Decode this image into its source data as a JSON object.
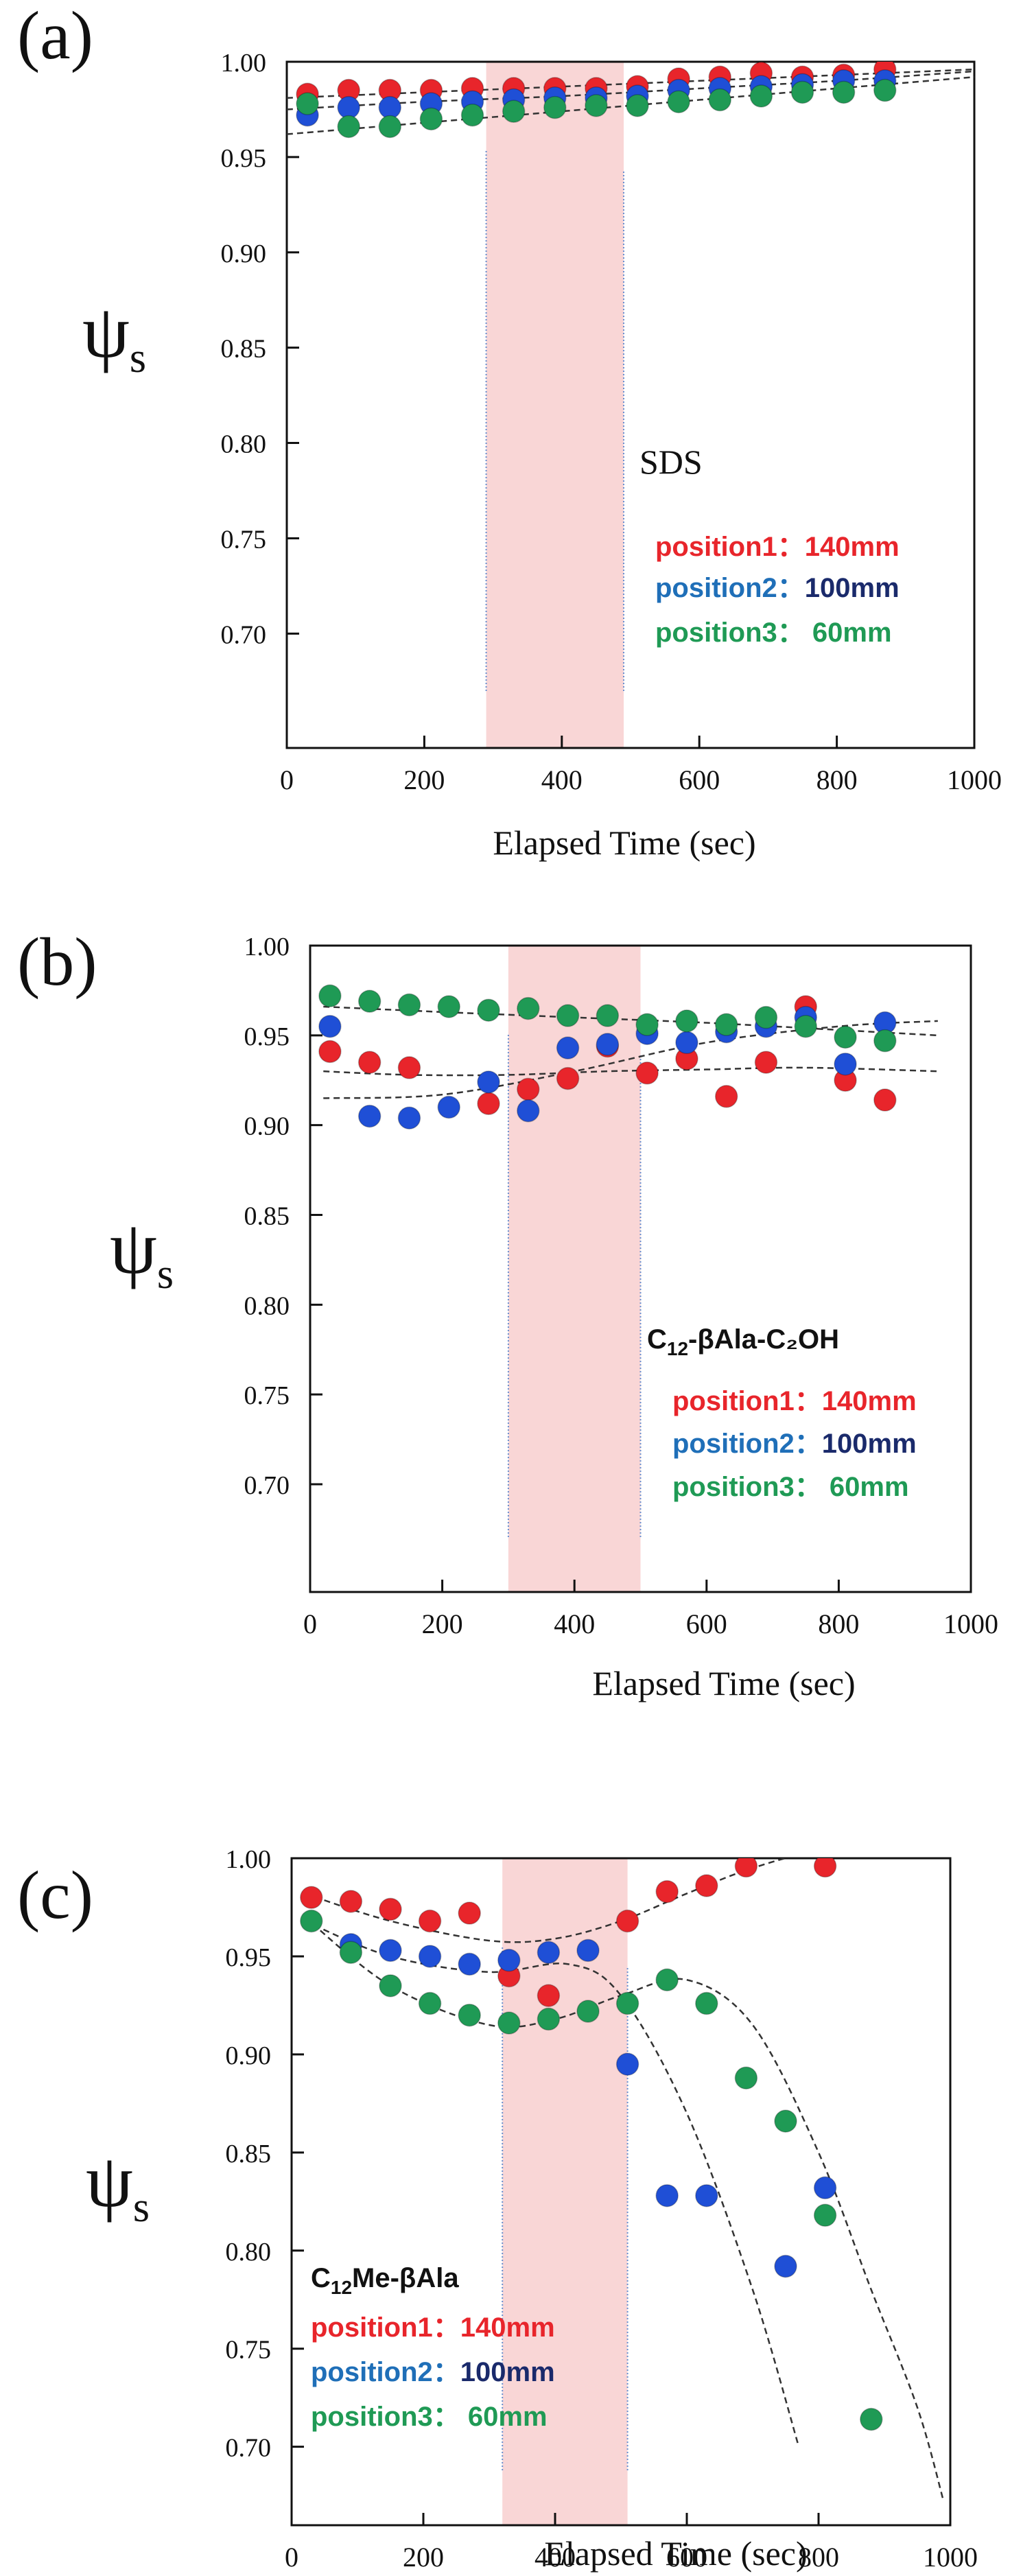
{
  "colors": {
    "red": "#e8252b",
    "blue": "#1f4fd6",
    "green": "#1f9a55",
    "pink": "#f9d6d6",
    "black": "#111111",
    "teal_text": "#1f6fb8",
    "navy_text": "#1a2a6b"
  },
  "chart_data": [
    {
      "type": "scatter",
      "panel_label": "(a)",
      "title": "",
      "xlabel": "Elapsed Time (sec)",
      "ylabel": "ψ",
      "ylabel_sub": "s",
      "xlim": [
        0,
        1000
      ],
      "ylim": [
        0.64,
        1.0
      ],
      "x_ticks": [
        "0",
        "200",
        "400",
        "600",
        "800",
        "1000"
      ],
      "y_ticks": [
        "1.00",
        "0.95",
        "0.90",
        "0.85",
        "0.80",
        "0.75",
        "0.70"
      ],
      "y_tick_values": [
        1.0,
        0.95,
        0.9,
        0.85,
        0.8,
        0.75,
        0.7
      ],
      "highlight_range": [
        290,
        490
      ],
      "annotation": {
        "name": "SDS",
        "sub": "",
        "tail": ""
      },
      "legend": [
        {
          "prefix": "position1",
          "sep": "：",
          "value": "140mm",
          "color": "red"
        },
        {
          "prefix": "position2",
          "sep": "：",
          "value": "100mm",
          "color": "blue"
        },
        {
          "prefix": "position3",
          "sep": "： ",
          "value": "60mm",
          "color": "green"
        }
      ],
      "series": [
        {
          "name": "position1:140mm",
          "color": "red",
          "x": [
            30,
            90,
            150,
            210,
            270,
            330,
            390,
            450,
            510,
            570,
            630,
            690,
            750,
            810,
            870
          ],
          "y": [
            0.983,
            0.985,
            0.985,
            0.985,
            0.986,
            0.986,
            0.986,
            0.986,
            0.987,
            0.991,
            0.992,
            0.994,
            0.992,
            0.993,
            0.996
          ],
          "fit": {
            "x": [
              0,
              200,
              400,
              600,
              800,
              1000
            ],
            "y": [
              0.981,
              0.984,
              0.987,
              0.99,
              0.993,
              0.996
            ]
          }
        },
        {
          "name": "position2:100mm",
          "color": "blue",
          "x": [
            30,
            90,
            150,
            210,
            270,
            330,
            390,
            450,
            510,
            570,
            630,
            690,
            750,
            810,
            870
          ],
          "y": [
            0.972,
            0.976,
            0.976,
            0.978,
            0.979,
            0.98,
            0.981,
            0.981,
            0.982,
            0.985,
            0.986,
            0.987,
            0.988,
            0.99,
            0.99
          ],
          "fit": {
            "x": [
              0,
              200,
              400,
              600,
              800,
              1000
            ],
            "y": [
              0.975,
              0.979,
              0.982,
              0.986,
              0.99,
              0.995
            ]
          }
        },
        {
          "name": "position3:60mm",
          "color": "green",
          "x": [
            30,
            90,
            150,
            210,
            270,
            330,
            390,
            450,
            510,
            570,
            630,
            690,
            750,
            810,
            870
          ],
          "y": [
            0.978,
            0.966,
            0.966,
            0.97,
            0.972,
            0.974,
            0.976,
            0.977,
            0.977,
            0.979,
            0.98,
            0.982,
            0.984,
            0.984,
            0.985
          ],
          "fit": {
            "x": [
              0,
              200,
              400,
              600,
              800,
              1000
            ],
            "y": [
              0.962,
              0.968,
              0.974,
              0.98,
              0.986,
              0.992
            ]
          }
        }
      ]
    },
    {
      "type": "scatter",
      "panel_label": "(b)",
      "title": "",
      "xlabel": "Elapsed Time (sec)",
      "ylabel": "ψ",
      "ylabel_sub": "s",
      "xlim": [
        0,
        1000
      ],
      "ylim": [
        0.64,
        1.0
      ],
      "x_ticks": [
        "0",
        "200",
        "400",
        "600",
        "800",
        "1000"
      ],
      "y_ticks": [
        "1.00",
        "0.95",
        "0.90",
        "0.85",
        "0.80",
        "0.75",
        "0.70"
      ],
      "y_tick_values": [
        1.0,
        0.95,
        0.9,
        0.85,
        0.8,
        0.75,
        0.7
      ],
      "highlight_range": [
        300,
        500
      ],
      "annotation": {
        "name": "C",
        "sub": "12",
        "tail": "-βAla-C₂OH"
      },
      "legend": [
        {
          "prefix": "position1",
          "sep": "：",
          "value": "140mm",
          "color": "red"
        },
        {
          "prefix": "position2",
          "sep": "：",
          "value": "100mm",
          "color": "blue"
        },
        {
          "prefix": "position3",
          "sep": "： ",
          "value": "60mm",
          "color": "green"
        }
      ],
      "series": [
        {
          "name": "position1:140mm",
          "color": "red",
          "x": [
            30,
            90,
            150,
            270,
            330,
            390,
            450,
            510,
            570,
            630,
            690,
            750,
            810,
            870
          ],
          "y": [
            0.941,
            0.935,
            0.932,
            0.912,
            0.92,
            0.926,
            0.944,
            0.929,
            0.937,
            0.916,
            0.935,
            0.966,
            0.925,
            0.914
          ],
          "fit": {
            "x": [
              20,
              150,
              300,
              450,
              600,
              750,
              950
            ],
            "y": [
              0.93,
              0.928,
              0.928,
              0.93,
              0.931,
              0.932,
              0.93
            ]
          }
        },
        {
          "name": "position2:100mm",
          "color": "blue",
          "x": [
            30,
            90,
            150,
            210,
            270,
            330,
            390,
            450,
            510,
            570,
            630,
            690,
            750,
            810,
            870
          ],
          "y": [
            0.955,
            0.905,
            0.904,
            0.91,
            0.924,
            0.908,
            0.943,
            0.945,
            0.951,
            0.946,
            0.952,
            0.955,
            0.96,
            0.934,
            0.957
          ],
          "fit": {
            "x": [
              20,
              200,
              400,
              600,
              800,
              950
            ],
            "y": [
              0.915,
              0.917,
              0.93,
              0.946,
              0.955,
              0.958
            ]
          }
        },
        {
          "name": "position3:60mm",
          "color": "green",
          "x": [
            30,
            90,
            150,
            210,
            270,
            330,
            390,
            450,
            510,
            570,
            630,
            690,
            750,
            810,
            870
          ],
          "y": [
            0.972,
            0.969,
            0.967,
            0.966,
            0.964,
            0.965,
            0.961,
            0.961,
            0.956,
            0.958,
            0.956,
            0.96,
            0.955,
            0.949,
            0.947
          ],
          "fit": {
            "x": [
              20,
              200,
              400,
              600,
              800,
              950
            ],
            "y": [
              0.966,
              0.963,
              0.96,
              0.957,
              0.953,
              0.95
            ]
          }
        }
      ]
    },
    {
      "type": "scatter",
      "panel_label": "(c)",
      "title": "",
      "xlabel": "Elapsed Time (sec)",
      "ylabel": "ψ",
      "ylabel_sub": "s",
      "xlim": [
        0,
        1000
      ],
      "ylim": [
        0.66,
        1.0
      ],
      "x_ticks": [
        "0",
        "200",
        "400",
        "600",
        "800",
        "1000"
      ],
      "y_ticks": [
        "1.00",
        "0.95",
        "0.90",
        "0.85",
        "0.80",
        "0.75",
        "0.70"
      ],
      "y_tick_values": [
        1.0,
        0.95,
        0.9,
        0.85,
        0.8,
        0.75,
        0.7
      ],
      "highlight_range": [
        320,
        510
      ],
      "annotation": {
        "name": "C",
        "sub": "12",
        "tail": "Me-βAla"
      },
      "legend": [
        {
          "prefix": "position1",
          "sep": "：",
          "value": "140mm",
          "color": "red"
        },
        {
          "prefix": "position2",
          "sep": "：",
          "value": "100mm",
          "color": "blue"
        },
        {
          "prefix": "position3",
          "sep": "： ",
          "value": "60mm",
          "color": "green"
        }
      ],
      "series": [
        {
          "name": "position1:140mm",
          "color": "red",
          "x": [
            30,
            90,
            150,
            210,
            270,
            330,
            390,
            510,
            570,
            630,
            690,
            810
          ],
          "y": [
            0.98,
            0.978,
            0.974,
            0.968,
            0.972,
            0.94,
            0.93,
            0.968,
            0.983,
            0.986,
            0.996,
            0.996
          ],
          "fit": {
            "x": [
              20,
              150,
              300,
              400,
              500,
              600,
              700,
              800,
              950
            ],
            "y": [
              0.982,
              0.968,
              0.958,
              0.959,
              0.968,
              0.982,
              0.995,
              1.003,
              1.004
            ]
          }
        },
        {
          "name": "position2:100mm",
          "color": "blue",
          "x": [
            90,
            150,
            210,
            270,
            330,
            390,
            450,
            510,
            570,
            630,
            750,
            810
          ],
          "y": [
            0.956,
            0.953,
            0.95,
            0.946,
            0.948,
            0.952,
            0.953,
            0.895,
            0.828,
            0.828,
            0.792,
            0.832
          ],
          "fit": {
            "x": [
              20,
              150,
              300,
              420,
              500,
              600,
              700,
              770
            ],
            "y": [
              0.968,
              0.95,
              0.942,
              0.946,
              0.93,
              0.87,
              0.78,
              0.7
            ]
          }
        },
        {
          "name": "position3:60mm",
          "color": "green",
          "x": [
            30,
            90,
            150,
            210,
            270,
            330,
            390,
            450,
            510,
            570,
            630,
            690,
            750,
            810,
            880
          ],
          "y": [
            0.968,
            0.952,
            0.935,
            0.926,
            0.92,
            0.916,
            0.918,
            0.922,
            0.926,
            0.938,
            0.926,
            0.888,
            0.866,
            0.818,
            0.714
          ],
          "fit": {
            "x": [
              20,
              150,
              300,
              400,
              500,
              600,
              700,
              800,
              880,
              950,
              990
            ],
            "y": [
              0.97,
              0.935,
              0.915,
              0.918,
              0.93,
              0.938,
              0.915,
              0.85,
              0.78,
              0.72,
              0.672
            ]
          }
        }
      ]
    }
  ]
}
